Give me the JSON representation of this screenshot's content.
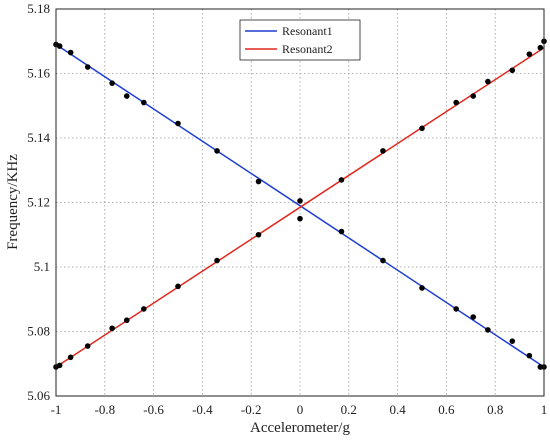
{
  "chart_data": {
    "type": "line",
    "xlabel": "Accelerometer/g",
    "ylabel": "Frequency/KHz",
    "xlim": [
      -1,
      1
    ],
    "ylim": [
      5.06,
      5.18
    ],
    "x_ticks": [
      "-1",
      "-0.8",
      "-0.6",
      "-0.4",
      "-0.2",
      "0",
      "0.2",
      "0.4",
      "0.6",
      "0.8",
      "1"
    ],
    "y_ticks": [
      "5.06",
      "5.08",
      "5.1",
      "5.12",
      "5.14",
      "5.16",
      "5.18"
    ],
    "grid": true,
    "legend_position": "top-center",
    "series": [
      {
        "name": "Resonant1",
        "color": "#1f3fd0",
        "fit": [
          [
            -1,
            5.169
          ],
          [
            1,
            5.069
          ]
        ],
        "points": [
          [
            -1.0,
            5.169
          ],
          [
            -0.985,
            5.1685
          ],
          [
            -0.94,
            5.1665
          ],
          [
            -0.87,
            5.162
          ],
          [
            -0.77,
            5.157
          ],
          [
            -0.71,
            5.153
          ],
          [
            -0.64,
            5.151
          ],
          [
            -0.5,
            5.1445
          ],
          [
            -0.34,
            5.136
          ],
          [
            -0.17,
            5.1265
          ],
          [
            0.0,
            5.1205
          ],
          [
            0.17,
            5.111
          ],
          [
            0.34,
            5.102
          ],
          [
            0.5,
            5.0935
          ],
          [
            0.64,
            5.087
          ],
          [
            0.71,
            5.0845
          ],
          [
            0.77,
            5.0805
          ],
          [
            0.87,
            5.077
          ],
          [
            0.94,
            5.0725
          ],
          [
            0.985,
            5.069
          ],
          [
            1.0,
            5.069
          ]
        ]
      },
      {
        "name": "Resonant2",
        "color": "#e0281e",
        "fit": [
          [
            -1,
            5.069
          ],
          [
            1,
            5.168
          ]
        ],
        "points": [
          [
            -1.0,
            5.069
          ],
          [
            -0.985,
            5.0695
          ],
          [
            -0.94,
            5.072
          ],
          [
            -0.87,
            5.0755
          ],
          [
            -0.77,
            5.081
          ],
          [
            -0.71,
            5.0835
          ],
          [
            -0.64,
            5.087
          ],
          [
            -0.5,
            5.094
          ],
          [
            -0.34,
            5.102
          ],
          [
            -0.17,
            5.11
          ],
          [
            0.0,
            5.115
          ],
          [
            0.17,
            5.127
          ],
          [
            0.34,
            5.136
          ],
          [
            0.5,
            5.143
          ],
          [
            0.64,
            5.151
          ],
          [
            0.71,
            5.153
          ],
          [
            0.77,
            5.1575
          ],
          [
            0.87,
            5.161
          ],
          [
            0.94,
            5.166
          ],
          [
            0.985,
            5.168
          ],
          [
            1.0,
            5.17
          ]
        ]
      }
    ],
    "marker_color": "#000000"
  }
}
